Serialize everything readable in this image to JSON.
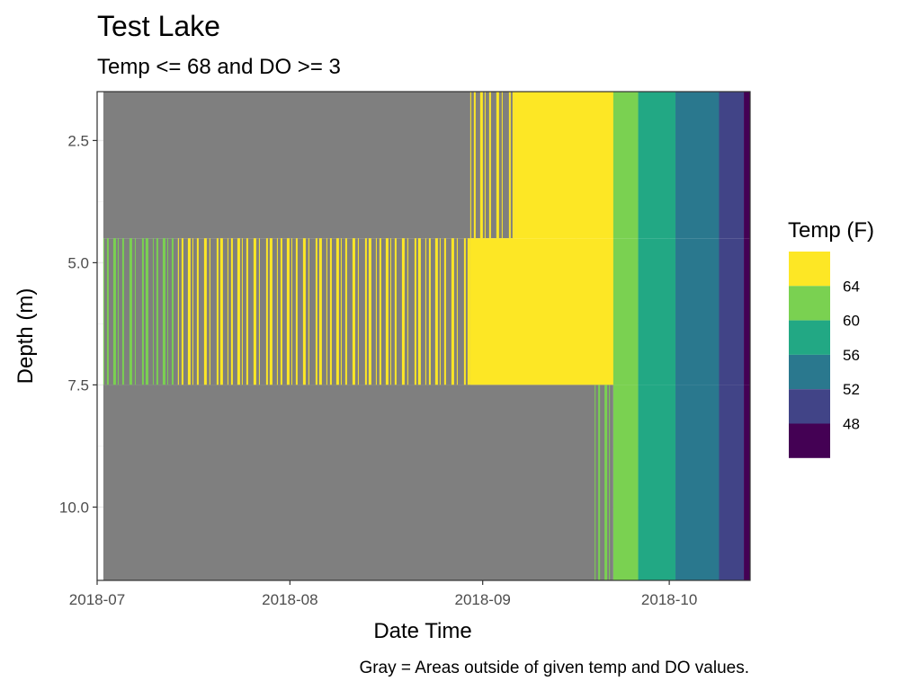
{
  "chart_data": {
    "type": "heatmap",
    "title": "Test Lake",
    "subtitle": "Temp <= 68 and DO >= 3",
    "xlabel": "Date Time",
    "ylabel": "Depth (m)",
    "caption": "Gray = Areas outside of given temp and DO values.",
    "x_range": [
      "2018-07-01",
      "2018-10-14"
    ],
    "y_range": [
      1.5,
      11.5
    ],
    "y_reversed": true,
    "x_ticks": [
      "2018-07",
      "2018-08",
      "2018-09",
      "2018-10"
    ],
    "y_ticks": [
      2.5,
      5.0,
      7.5,
      10.0
    ],
    "y_tick_labels": [
      "2.5",
      "5.0",
      "7.5",
      "10.0"
    ],
    "grid": true,
    "legend": {
      "title": "Temp (F)",
      "position": "right",
      "breaks": [
        64,
        60,
        56,
        52,
        48
      ],
      "colors": [
        "#fde725",
        "#7ad151",
        "#22a884",
        "#2a788e",
        "#414487",
        "#440154"
      ]
    },
    "outside_color": "#7f7f7f",
    "depth_layers": [
      {
        "top": 1.5,
        "bottom": 4.5,
        "segments": [
          {
            "start": "2018-07-02",
            "end": "2018-08-30",
            "temp": null
          },
          {
            "start": "2018-08-30",
            "end": "2018-09-06",
            "temp": 66,
            "note": "intermittent"
          },
          {
            "start": "2018-09-06",
            "end": "2018-09-22",
            "temp": 66
          },
          {
            "start": "2018-09-22",
            "end": "2018-09-26",
            "temp": 62
          },
          {
            "start": "2018-09-26",
            "end": "2018-10-02",
            "temp": 58
          },
          {
            "start": "2018-10-02",
            "end": "2018-10-09",
            "temp": 54
          },
          {
            "start": "2018-10-09",
            "end": "2018-10-13",
            "temp": 50
          },
          {
            "start": "2018-10-13",
            "end": "2018-10-14",
            "temp": 47
          }
        ]
      },
      {
        "top": 4.5,
        "bottom": 7.5,
        "segments": [
          {
            "start": "2018-07-02",
            "end": "2018-07-14",
            "temp": 62,
            "note": "intermittent"
          },
          {
            "start": "2018-07-14",
            "end": "2018-08-30",
            "temp": 66,
            "note": "intermittent"
          },
          {
            "start": "2018-08-30",
            "end": "2018-09-22",
            "temp": 66
          },
          {
            "start": "2018-09-22",
            "end": "2018-09-26",
            "temp": 62
          },
          {
            "start": "2018-09-26",
            "end": "2018-10-02",
            "temp": 58
          },
          {
            "start": "2018-10-02",
            "end": "2018-10-09",
            "temp": 54
          },
          {
            "start": "2018-10-09",
            "end": "2018-10-13",
            "temp": 50
          },
          {
            "start": "2018-10-13",
            "end": "2018-10-14",
            "temp": 47
          }
        ]
      },
      {
        "top": 7.5,
        "bottom": 11.5,
        "segments": [
          {
            "start": "2018-07-02",
            "end": "2018-09-19",
            "temp": null
          },
          {
            "start": "2018-09-19",
            "end": "2018-09-22",
            "temp": 62,
            "note": "intermittent"
          },
          {
            "start": "2018-09-22",
            "end": "2018-09-26",
            "temp": 62
          },
          {
            "start": "2018-09-26",
            "end": "2018-10-02",
            "temp": 58
          },
          {
            "start": "2018-10-02",
            "end": "2018-10-09",
            "temp": 54
          },
          {
            "start": "2018-10-09",
            "end": "2018-10-13",
            "temp": 50
          },
          {
            "start": "2018-10-13",
            "end": "2018-10-14",
            "temp": 47
          }
        ]
      }
    ]
  }
}
